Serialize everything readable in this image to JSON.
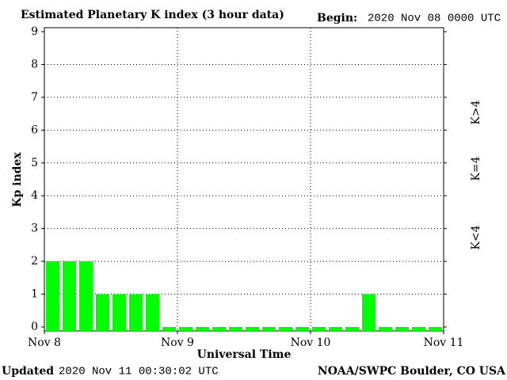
{
  "chart_data": {
    "type": "bar",
    "title": "Estimated Planetary K index (3 hour data)",
    "begin_label": "Begin:",
    "begin_value": "2020 Nov 08 0000 UTC",
    "y_label": "Kp index",
    "x_label": "Universal Time",
    "updated_label": "Updated",
    "updated_value": "2020 Nov 11 00:30:02 UTC",
    "source": "NOAA/SWPC Boulder, CO USA",
    "categories": [
      null,
      null,
      null,
      null,
      null,
      null,
      null,
      null,
      null,
      null,
      null,
      null,
      null,
      null,
      null,
      null,
      null,
      null,
      null,
      null,
      null,
      null,
      null,
      null
    ],
    "values": [
      2,
      2,
      2,
      1,
      1,
      1,
      1,
      0,
      0,
      0,
      0,
      0,
      0,
      0,
      0,
      0,
      0,
      0,
      0,
      1,
      0,
      0,
      0,
      0
    ],
    "color": "#00ff00",
    "ylim": [
      0,
      9
    ],
    "yticks": [
      0,
      1,
      2,
      3,
      4,
      5,
      6,
      7,
      8,
      9
    ],
    "xlim": [
      0,
      24
    ],
    "xticks": [
      {
        "value": 0,
        "label": "Nov 8"
      },
      {
        "value": 8,
        "label": "Nov 9"
      },
      {
        "value": 16,
        "label": "Nov 10"
      },
      {
        "value": 24,
        "label": "Nov 11"
      }
    ],
    "grid": true,
    "legend": [
      {
        "label": "K<4",
        "color": "#00ff00"
      },
      {
        "label": "K=4",
        "color": "#ffcc00"
      },
      {
        "label": "K>4",
        "color": "#ff3300"
      }
    ]
  }
}
